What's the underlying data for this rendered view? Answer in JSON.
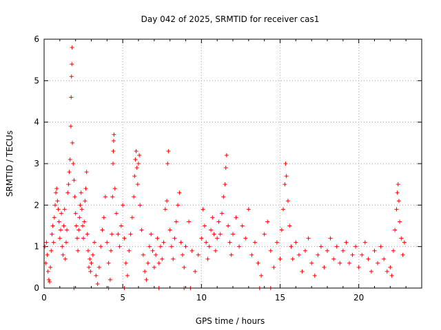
{
  "chart_data": {
    "type": "scatter",
    "title": "Day 042 of 2025, SRMTID for receiver cas1",
    "xlabel": "GPS time / hours",
    "ylabel": "SRMTID / TECUs",
    "xlim": [
      0,
      24
    ],
    "ylim": [
      0,
      6
    ],
    "xticks": [
      0,
      5,
      10,
      15,
      20
    ],
    "yticks": [
      0,
      1,
      2,
      3,
      4,
      5,
      6
    ],
    "grid": true,
    "marker": "+",
    "color": "#ff0000",
    "series": [
      {
        "name": "SRMTID",
        "points": [
          [
            0.05,
            1.0
          ],
          [
            0.1,
            0.6
          ],
          [
            0.15,
            1.1
          ],
          [
            0.2,
            0.8
          ],
          [
            0.25,
            0.4
          ],
          [
            0.3,
            0.2
          ],
          [
            0.35,
            0.15
          ],
          [
            0.4,
            0.5
          ],
          [
            0.45,
            0.9
          ],
          [
            0.5,
            1.3
          ],
          [
            0.55,
            1.5
          ],
          [
            0.6,
            1.1
          ],
          [
            0.65,
            1.7
          ],
          [
            0.7,
            2.0
          ],
          [
            0.75,
            2.3
          ],
          [
            0.8,
            2.4
          ],
          [
            0.85,
            2.1
          ],
          [
            0.9,
            1.9
          ],
          [
            0.95,
            1.6
          ],
          [
            1.0,
            1.2
          ],
          [
            1.05,
            1.4
          ],
          [
            1.1,
            1.8
          ],
          [
            1.15,
            1.0
          ],
          [
            1.2,
            0.8
          ],
          [
            1.25,
            1.5
          ],
          [
            1.3,
            1.9
          ],
          [
            1.35,
            0.7
          ],
          [
            1.4,
            1.1
          ],
          [
            1.45,
            1.4
          ],
          [
            1.5,
            2.3
          ],
          [
            1.55,
            2.5
          ],
          [
            1.6,
            2.8
          ],
          [
            1.65,
            3.1
          ],
          [
            1.7,
            3.9
          ],
          [
            1.72,
            4.6
          ],
          [
            1.74,
            5.1
          ],
          [
            1.76,
            5.4
          ],
          [
            1.78,
            5.8
          ],
          [
            1.8,
            3.5
          ],
          [
            1.85,
            3.0
          ],
          [
            1.9,
            2.6
          ],
          [
            1.95,
            2.2
          ],
          [
            2.0,
            1.8
          ],
          [
            2.05,
            1.5
          ],
          [
            2.1,
            1.2
          ],
          [
            2.15,
            0.9
          ],
          [
            2.2,
            1.4
          ],
          [
            2.25,
            1.7
          ],
          [
            2.3,
            2.0
          ],
          [
            2.35,
            2.3
          ],
          [
            2.4,
            1.9
          ],
          [
            2.45,
            1.5
          ],
          [
            2.5,
            1.2
          ],
          [
            2.55,
            1.6
          ],
          [
            2.6,
            2.1
          ],
          [
            2.65,
            2.4
          ],
          [
            2.7,
            2.8
          ],
          [
            2.75,
            1.3
          ],
          [
            2.8,
            0.9
          ],
          [
            2.85,
            0.5
          ],
          [
            2.9,
            0.7
          ],
          [
            2.95,
            0.4
          ],
          [
            3.0,
            0.6
          ],
          [
            3.1,
            0.8
          ],
          [
            3.2,
            1.1
          ],
          [
            3.3,
            0.3
          ],
          [
            3.4,
            0.1
          ],
          [
            3.5,
            0.5
          ],
          [
            3.6,
            1.0
          ],
          [
            3.7,
            1.4
          ],
          [
            3.8,
            1.7
          ],
          [
            3.9,
            2.2
          ],
          [
            4.0,
            1.1
          ],
          [
            4.1,
            0.6
          ],
          [
            4.2,
            0.2
          ],
          [
            4.25,
            0.9
          ],
          [
            4.3,
            1.3
          ],
          [
            4.35,
            2.2
          ],
          [
            4.38,
            3.0
          ],
          [
            4.4,
            3.3
          ],
          [
            4.42,
            3.55
          ],
          [
            4.44,
            3.7
          ],
          [
            4.5,
            2.4
          ],
          [
            4.6,
            1.8
          ],
          [
            4.7,
            1.3
          ],
          [
            4.8,
            1.0
          ],
          [
            4.9,
            1.5
          ],
          [
            5.0,
            2.0
          ],
          [
            5.1,
            1.2
          ],
          [
            5.2,
            0.6
          ],
          [
            5.3,
            0.3
          ],
          [
            5.4,
            0.9
          ],
          [
            5.5,
            1.3
          ],
          [
            5.6,
            1.7
          ],
          [
            5.7,
            2.2
          ],
          [
            5.75,
            2.7
          ],
          [
            5.8,
            3.1
          ],
          [
            5.85,
            3.3
          ],
          [
            5.9,
            2.9
          ],
          [
            5.95,
            2.5
          ],
          [
            6.0,
            3.0
          ],
          [
            6.05,
            3.2
          ],
          [
            6.1,
            2.0
          ],
          [
            6.2,
            1.4
          ],
          [
            6.3,
            0.8
          ],
          [
            6.4,
            0.4
          ],
          [
            6.5,
            0.2
          ],
          [
            6.6,
            0.6
          ],
          [
            6.7,
            1.0
          ],
          [
            6.8,
            1.3
          ],
          [
            6.9,
            0.9
          ],
          [
            7.0,
            0.5
          ],
          [
            7.1,
            0.8
          ],
          [
            7.2,
            1.2
          ],
          [
            7.3,
            0.6
          ],
          [
            7.4,
            1.0
          ],
          [
            7.5,
            0.7
          ],
          [
            7.6,
            1.1
          ],
          [
            7.7,
            1.9
          ],
          [
            7.8,
            2.1
          ],
          [
            7.85,
            3.0
          ],
          [
            7.9,
            3.3
          ],
          [
            8.0,
            1.4
          ],
          [
            8.1,
            1.0
          ],
          [
            8.2,
            0.7
          ],
          [
            8.3,
            1.2
          ],
          [
            8.4,
            1.6
          ],
          [
            8.5,
            2.0
          ],
          [
            8.6,
            2.3
          ],
          [
            8.7,
            1.1
          ],
          [
            8.8,
            0.8
          ],
          [
            8.9,
            0.5
          ],
          [
            9.0,
            1.0
          ],
          [
            9.2,
            1.6
          ],
          [
            9.4,
            0.9
          ],
          [
            9.6,
            0.4
          ],
          [
            9.8,
            0.8
          ],
          [
            10.0,
            1.2
          ],
          [
            10.1,
            1.9
          ],
          [
            10.2,
            1.5
          ],
          [
            10.3,
            1.1
          ],
          [
            10.4,
            0.7
          ],
          [
            10.5,
            1.0
          ],
          [
            10.6,
            1.4
          ],
          [
            10.7,
            1.7
          ],
          [
            10.8,
            1.3
          ],
          [
            10.9,
            0.9
          ],
          [
            11.0,
            1.2
          ],
          [
            11.1,
            1.6
          ],
          [
            11.2,
            1.3
          ],
          [
            11.3,
            1.8
          ],
          [
            11.4,
            2.2
          ],
          [
            11.5,
            2.5
          ],
          [
            11.55,
            2.9
          ],
          [
            11.6,
            3.2
          ],
          [
            11.7,
            1.5
          ],
          [
            11.8,
            1.1
          ],
          [
            11.9,
            0.8
          ],
          [
            12.0,
            1.3
          ],
          [
            12.2,
            1.7
          ],
          [
            12.4,
            1.0
          ],
          [
            12.6,
            1.5
          ],
          [
            12.8,
            1.2
          ],
          [
            13.0,
            1.9
          ],
          [
            13.2,
            0.8
          ],
          [
            13.4,
            1.1
          ],
          [
            13.6,
            0.6
          ],
          [
            13.8,
            0.3
          ],
          [
            14.0,
            1.3
          ],
          [
            14.2,
            1.6
          ],
          [
            14.4,
            0.9
          ],
          [
            14.6,
            0.5
          ],
          [
            14.8,
            1.1
          ],
          [
            15.0,
            0.7
          ],
          [
            15.1,
            1.4
          ],
          [
            15.2,
            1.9
          ],
          [
            15.3,
            2.5
          ],
          [
            15.35,
            3.0
          ],
          [
            15.4,
            2.7
          ],
          [
            15.5,
            2.1
          ],
          [
            15.6,
            1.5
          ],
          [
            15.7,
            1.0
          ],
          [
            15.8,
            0.7
          ],
          [
            16.0,
            1.1
          ],
          [
            16.2,
            0.8
          ],
          [
            16.4,
            0.4
          ],
          [
            16.6,
            0.9
          ],
          [
            16.8,
            1.2
          ],
          [
            17.0,
            0.6
          ],
          [
            17.2,
            0.3
          ],
          [
            17.4,
            0.8
          ],
          [
            17.6,
            1.0
          ],
          [
            17.8,
            0.5
          ],
          [
            18.0,
            0.9
          ],
          [
            18.2,
            1.2
          ],
          [
            18.4,
            0.7
          ],
          [
            18.6,
            1.0
          ],
          [
            18.8,
            0.6
          ],
          [
            19.0,
            0.9
          ],
          [
            19.2,
            1.1
          ],
          [
            19.4,
            0.6
          ],
          [
            19.6,
            0.8
          ],
          [
            19.8,
            1.0
          ],
          [
            20.0,
            0.5
          ],
          [
            20.2,
            0.8
          ],
          [
            20.4,
            1.1
          ],
          [
            20.6,
            0.7
          ],
          [
            20.8,
            0.4
          ],
          [
            21.0,
            0.9
          ],
          [
            21.2,
            0.6
          ],
          [
            21.4,
            1.0
          ],
          [
            21.6,
            0.7
          ],
          [
            21.8,
            0.4
          ],
          [
            22.0,
            0.5
          ],
          [
            22.1,
            0.3
          ],
          [
            22.2,
            0.9
          ],
          [
            22.3,
            1.4
          ],
          [
            22.4,
            1.9
          ],
          [
            22.45,
            2.3
          ],
          [
            22.5,
            2.5
          ],
          [
            22.55,
            2.1
          ],
          [
            22.6,
            1.6
          ],
          [
            22.7,
            1.2
          ],
          [
            22.8,
            0.8
          ],
          [
            22.9,
            1.1
          ],
          [
            1.9,
            0.0
          ],
          [
            4.1,
            0.0
          ],
          [
            5.1,
            0.0
          ],
          [
            7.3,
            0.0
          ],
          [
            8.9,
            0.0
          ],
          [
            9.3,
            0.0
          ],
          [
            13.7,
            0.0
          ],
          [
            14.4,
            0.0
          ]
        ]
      }
    ]
  }
}
